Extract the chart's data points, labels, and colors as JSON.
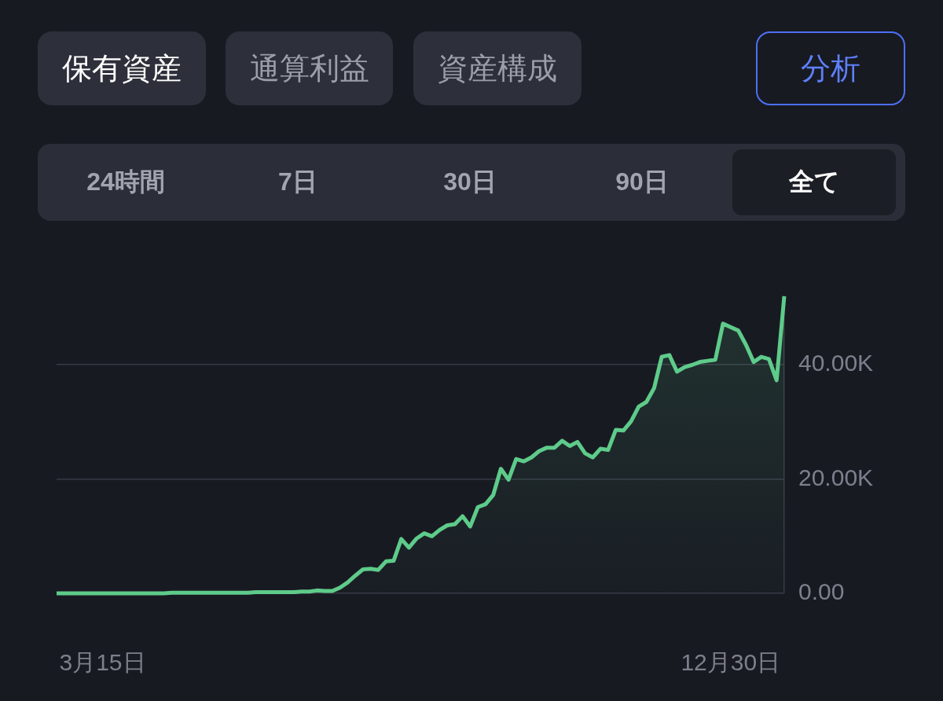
{
  "chart_data": {
    "type": "area",
    "categories": [
      null,
      null,
      null,
      null,
      null,
      null,
      "3月15日",
      null,
      null,
      null,
      null,
      null,
      null,
      null,
      null,
      null,
      null,
      null,
      null,
      null,
      null,
      null,
      null,
      null,
      null,
      null,
      null,
      null,
      null,
      null,
      null,
      null,
      null,
      null,
      null,
      null,
      null,
      null,
      null,
      null,
      null,
      null,
      null,
      null,
      null,
      null,
      null,
      null,
      null,
      null,
      null,
      null,
      null,
      null,
      null,
      null,
      null,
      null,
      null,
      null,
      null,
      null,
      null,
      null,
      null,
      null,
      null,
      null,
      null,
      null,
      null,
      null,
      null,
      null,
      null,
      null,
      null,
      null,
      null,
      null,
      null,
      null,
      null,
      null,
      null,
      null,
      null,
      null,
      "12月30日",
      null,
      null,
      null,
      null,
      null,
      null,
      null
    ],
    "series": [
      {
        "color": "#5ecb8a",
        "values": [
          0,
          0,
          0,
          0,
          0,
          0,
          0,
          0,
          0,
          0,
          0,
          0,
          0,
          0,
          0,
          100,
          100,
          100,
          100,
          100,
          100,
          100,
          100,
          100,
          100,
          100,
          200,
          200,
          200,
          200,
          200,
          200,
          300,
          300,
          500,
          400,
          400,
          1000,
          1900,
          3100,
          4200,
          4300,
          4100,
          5600,
          5700,
          9500,
          8000,
          9600,
          10500,
          10000,
          11100,
          11900,
          12100,
          13500,
          11700,
          15100,
          15600,
          17200,
          21800,
          19900,
          23500,
          23100,
          23800,
          24900,
          25500,
          25500,
          26700,
          25800,
          26500,
          24500,
          23800,
          25300,
          25100,
          28600,
          28500,
          30100,
          32700,
          33500,
          35900,
          41400,
          41700,
          38800,
          39600,
          40000,
          40500,
          40700,
          40900,
          47200,
          46600,
          46000,
          43500,
          40500,
          41400,
          41000,
          37300,
          52000
        ]
      }
    ],
    "ylim": [
      0,
      52000
    ],
    "yticks": [
      {
        "value": 0,
        "label": "0.00"
      },
      {
        "value": 20000,
        "label": "20.00K"
      },
      {
        "value": 40000,
        "label": "40.00K"
      }
    ],
    "grid": "y",
    "annotations": [
      "保有資産",
      "通算利益",
      "資産構成",
      "分析",
      "24時間",
      "7日",
      "30日",
      "90日",
      "全て"
    ]
  }
}
